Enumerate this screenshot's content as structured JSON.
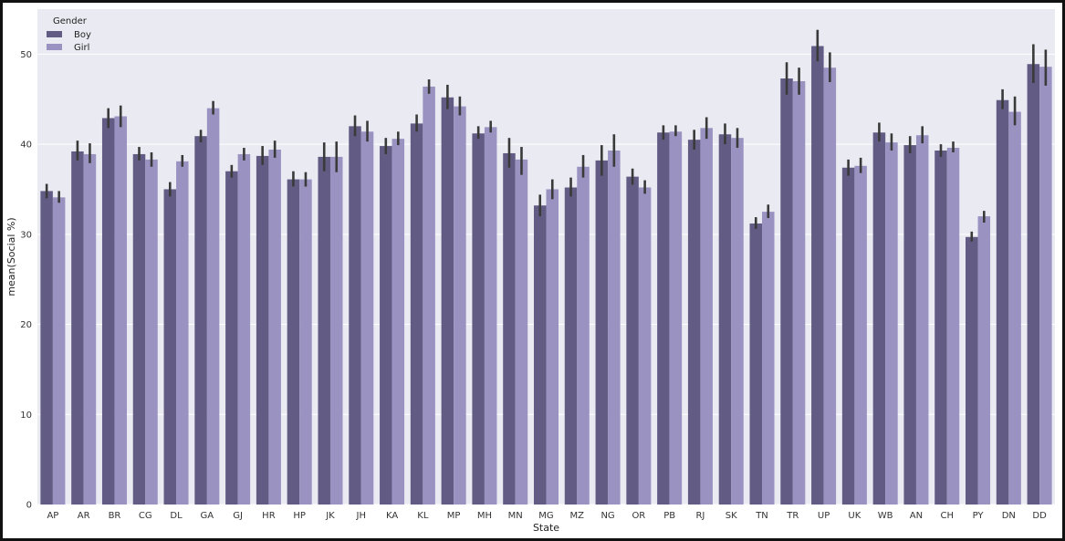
{
  "chart_data": {
    "type": "bar",
    "title": "",
    "xlabel": "State",
    "ylabel": "mean(Social %)",
    "ylim": [
      0,
      55
    ],
    "yticks": [
      0,
      10,
      20,
      30,
      40,
      50
    ],
    "grid": "horizontal",
    "legend": {
      "title": "Gender",
      "placement": "top-left"
    },
    "colors": {
      "background": "#EAEAF2",
      "grid": "#FFFFFF",
      "errorbar": "#3A3A3A"
    },
    "categories": [
      "AP",
      "AR",
      "BR",
      "CG",
      "DL",
      "GA",
      "GJ",
      "HR",
      "HP",
      "JK",
      "JH",
      "KA",
      "KL",
      "MP",
      "MH",
      "MN",
      "MG",
      "MZ",
      "NG",
      "OR",
      "PB",
      "RJ",
      "SK",
      "TN",
      "TR",
      "UP",
      "UK",
      "WB",
      "AN",
      "CH",
      "PY",
      "DN",
      "DD"
    ],
    "series": [
      {
        "name": "Boy",
        "color": "#625C85",
        "values": [
          34.8,
          39.2,
          42.9,
          38.9,
          35.0,
          40.9,
          37.0,
          38.7,
          36.1,
          38.6,
          42.0,
          39.8,
          42.3,
          45.2,
          41.2,
          39.0,
          33.2,
          35.2,
          38.2,
          36.4,
          41.3,
          40.5,
          41.1,
          31.2,
          47.3,
          50.9,
          37.4,
          41.3,
          39.9,
          39.3,
          29.7,
          44.9,
          48.9
        ],
        "err_low": [
          34.0,
          38.2,
          41.8,
          38.2,
          34.2,
          40.2,
          36.3,
          37.7,
          35.3,
          37.0,
          40.9,
          38.9,
          41.4,
          43.9,
          40.6,
          37.4,
          32.0,
          34.2,
          36.5,
          35.5,
          40.5,
          39.4,
          40.0,
          30.6,
          45.5,
          49.2,
          36.5,
          40.3,
          39.0,
          38.6,
          29.2,
          43.9,
          46.8
        ],
        "err_high": [
          35.6,
          40.4,
          44.0,
          39.7,
          35.8,
          41.6,
          37.7,
          39.8,
          37.0,
          40.2,
          43.2,
          40.7,
          43.3,
          46.6,
          42.0,
          40.7,
          34.4,
          36.3,
          39.9,
          37.3,
          42.1,
          41.6,
          42.3,
          31.9,
          49.1,
          52.7,
          38.3,
          42.4,
          40.9,
          40.0,
          30.3,
          46.1,
          51.1
        ]
      },
      {
        "name": "Girl",
        "color": "#9A93C2",
        "values": [
          34.1,
          38.9,
          43.1,
          38.3,
          38.1,
          44.0,
          38.9,
          39.4,
          36.1,
          38.6,
          41.4,
          40.6,
          46.4,
          44.2,
          41.9,
          38.3,
          35.0,
          37.5,
          39.3,
          35.2,
          41.4,
          41.8,
          40.7,
          32.5,
          47.0,
          48.5,
          37.6,
          40.2,
          41.0,
          39.6,
          32.0,
          43.6,
          48.6
        ],
        "err_low": [
          33.5,
          37.9,
          41.9,
          37.5,
          37.5,
          43.3,
          38.2,
          38.5,
          35.3,
          36.9,
          40.3,
          39.9,
          45.6,
          43.2,
          41.3,
          36.6,
          33.9,
          36.3,
          37.5,
          34.5,
          40.9,
          40.6,
          39.6,
          31.8,
          45.5,
          46.9,
          36.8,
          39.3,
          40.1,
          39.1,
          31.3,
          42.1,
          46.5
        ],
        "err_high": [
          34.8,
          40.1,
          44.3,
          39.1,
          38.8,
          44.8,
          39.6,
          40.4,
          36.9,
          40.3,
          42.6,
          41.4,
          47.2,
          45.3,
          42.6,
          39.7,
          36.1,
          38.8,
          41.1,
          36.0,
          42.1,
          43.0,
          41.8,
          33.3,
          48.5,
          50.2,
          38.5,
          41.2,
          42.0,
          40.3,
          32.6,
          45.3,
          50.5
        ]
      }
    ]
  }
}
